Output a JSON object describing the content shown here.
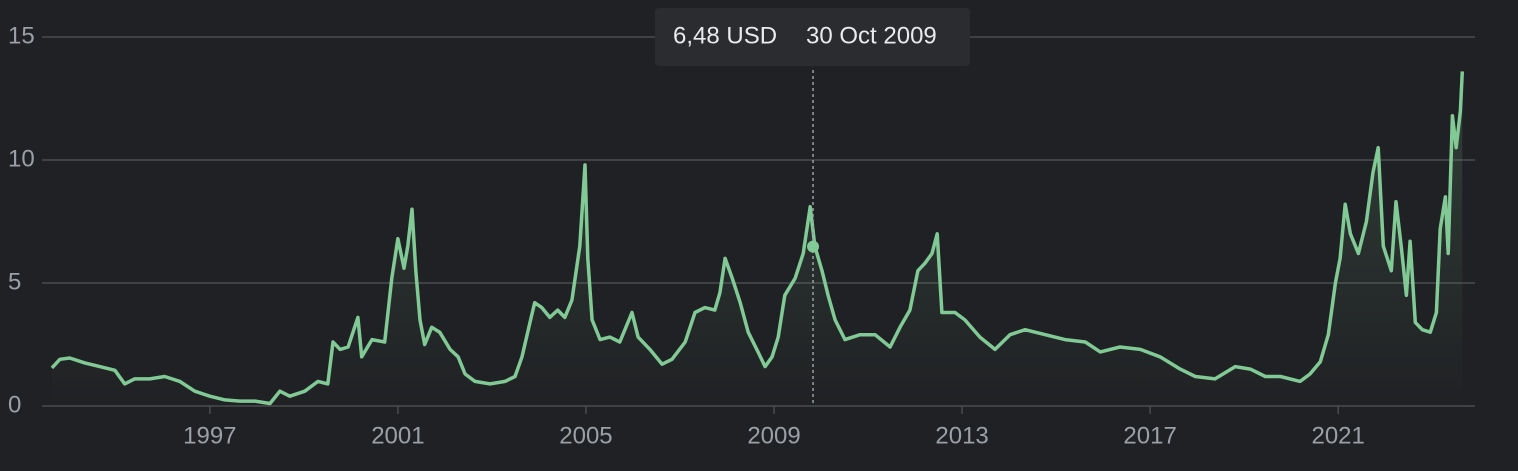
{
  "chart_data": {
    "type": "line",
    "x": [
      1993.64,
      1993.81,
      1994.02,
      1994.34,
      1994.66,
      1994.98,
      1995.19,
      1995.4,
      1995.72,
      1996.04,
      1996.36,
      1996.68,
      1997.0,
      1997.32,
      1997.64,
      1997.96,
      1998.28,
      1998.49,
      1998.7,
      1999.02,
      1999.3,
      1999.51,
      1999.62,
      1999.77,
      1999.94,
      2000.15,
      2000.23,
      2000.45,
      2000.72,
      2000.87,
      2001.0,
      2001.13,
      2001.21,
      2001.3,
      2001.38,
      2001.47,
      2001.57,
      2001.72,
      2001.89,
      2002.11,
      2002.28,
      2002.43,
      2002.64,
      2002.96,
      2003.28,
      2003.49,
      2003.64,
      2003.81,
      2003.91,
      2004.06,
      2004.23,
      2004.4,
      2004.55,
      2004.7,
      2004.87,
      2004.98,
      2005.04,
      2005.13,
      2005.3,
      2005.51,
      2005.72,
      2005.98,
      2006.11,
      2006.36,
      2006.62,
      2006.83,
      2007.11,
      2007.32,
      2007.53,
      2007.74,
      2007.85,
      2007.96,
      2008.11,
      2008.28,
      2008.45,
      2008.66,
      2008.81,
      2008.96,
      2009.09,
      2009.23,
      2009.45,
      2009.62,
      2009.77,
      2009.87,
      2010.02,
      2010.15,
      2010.3,
      2010.51,
      2010.83,
      2011.15,
      2011.47,
      2011.68,
      2011.89,
      2012.06,
      2012.21,
      2012.36,
      2012.47,
      2012.57,
      2012.85,
      2013.06,
      2013.38,
      2013.7,
      2014.02,
      2014.34,
      2014.77,
      2015.19,
      2015.62,
      2015.94,
      2016.36,
      2016.79,
      2017.21,
      2017.64,
      2017.96,
      2018.38,
      2018.81,
      2019.13,
      2019.45,
      2019.77,
      2020.19,
      2020.4,
      2020.62,
      2020.79,
      2020.94,
      2021.04,
      2021.15,
      2021.26,
      2021.43,
      2021.6,
      2021.74,
      2021.85,
      2021.96,
      2022.13,
      2022.23,
      2022.34,
      2022.45,
      2022.53,
      2022.64,
      2022.79,
      2022.96,
      2023.09,
      2023.17,
      2023.28,
      2023.34,
      2023.43,
      2023.51,
      2023.6,
      2023.64
    ],
    "series": [
      {
        "color": "#81c995",
        "values": [
          1.55,
          1.9,
          1.95,
          1.75,
          1.6,
          1.45,
          0.9,
          1.1,
          1.1,
          1.2,
          1.0,
          0.6,
          0.4,
          0.25,
          0.2,
          0.2,
          0.1,
          0.6,
          0.4,
          0.6,
          1.0,
          0.9,
          2.6,
          2.3,
          2.4,
          3.6,
          2.0,
          2.7,
          2.6,
          5.2,
          6.8,
          5.6,
          6.5,
          8.0,
          5.5,
          3.5,
          2.5,
          3.2,
          3.0,
          2.3,
          2.0,
          1.3,
          1.0,
          0.9,
          1.0,
          1.2,
          2.0,
          3.4,
          4.2,
          4.0,
          3.6,
          3.9,
          3.6,
          4.3,
          6.5,
          9.8,
          6.0,
          3.5,
          2.7,
          2.8,
          2.6,
          3.8,
          2.8,
          2.3,
          1.7,
          1.9,
          2.6,
          3.8,
          4.0,
          3.9,
          4.6,
          6.0,
          5.2,
          4.2,
          3.0,
          2.2,
          1.6,
          2.0,
          2.8,
          4.5,
          5.2,
          6.2,
          8.1,
          6.48,
          5.5,
          4.5,
          3.5,
          2.7,
          2.9,
          2.9,
          2.4,
          3.2,
          3.9,
          5.5,
          5.8,
          6.2,
          7.0,
          3.8,
          3.8,
          3.5,
          2.8,
          2.3,
          2.9,
          3.1,
          2.9,
          2.7,
          2.6,
          2.2,
          2.4,
          2.3,
          2.0,
          1.5,
          1.2,
          1.1,
          1.6,
          1.5,
          1.2,
          1.2,
          1.0,
          1.3,
          1.8,
          2.9,
          5.0,
          6.0,
          8.2,
          7.0,
          6.2,
          7.5,
          9.5,
          10.5,
          6.5,
          5.5,
          8.3,
          6.5,
          4.5,
          6.7,
          3.4,
          3.1,
          3.0,
          3.8,
          7.2,
          8.5,
          6.2,
          11.8,
          10.5,
          12.0,
          13.6
        ]
      }
    ],
    "xlim": [
      1993.43,
      2023.91
    ],
    "xticks": [
      1997,
      2001,
      2005,
      2009,
      2013,
      2017,
      2021
    ],
    "ylim": [
      0,
      15
    ],
    "yticks": [
      0,
      5,
      10,
      15
    ],
    "grid": true,
    "tooltip": {
      "x": 2009.83,
      "value": 6.48,
      "value_label": "6,48 USD",
      "date": "30 Oct 2009"
    }
  }
}
